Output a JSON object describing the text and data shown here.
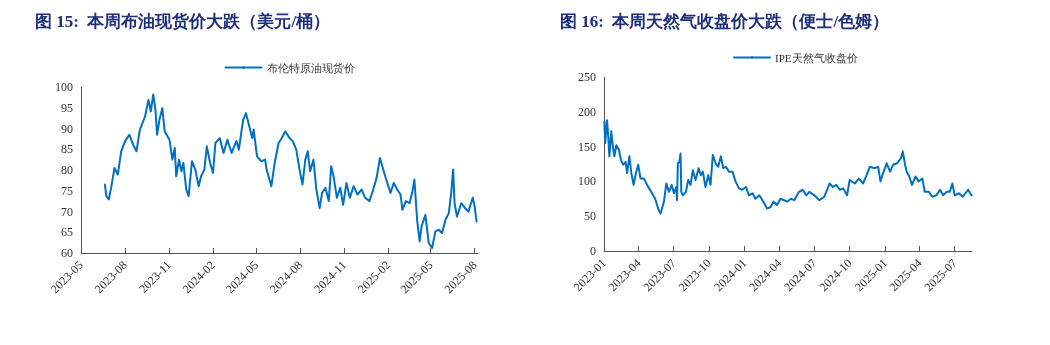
{
  "chart_data": [
    {
      "type": "line",
      "title": "图 15:  本周布油现货价大跌（美元/桶）",
      "legend": "top",
      "grid": false,
      "marker": "none",
      "line_style": "solid",
      "xlim": [
        "2023-05-01",
        "2025-08-08"
      ],
      "xticks": [
        "2023-05",
        "2023-08",
        "2023-11",
        "2024-02",
        "2024-05",
        "2024-08",
        "2024-11",
        "2025-02",
        "2025-05",
        "2025-08"
      ],
      "ylim": [
        60,
        100
      ],
      "yticks": [
        60,
        65,
        70,
        75,
        80,
        85,
        90,
        95,
        100
      ],
      "series": [
        {
          "name": "布伦特原油现货价",
          "color": "#0070c0",
          "x": [
            "2023-06-20",
            "2023-06-23",
            "2023-06-28",
            "2023-07-03",
            "2023-07-10",
            "2023-07-17",
            "2023-07-24",
            "2023-08-01",
            "2023-08-10",
            "2023-08-18",
            "2023-08-25",
            "2023-09-01",
            "2023-09-12",
            "2023-09-19",
            "2023-09-24",
            "2023-09-29",
            "2023-10-04",
            "2023-10-07",
            "2023-10-12",
            "2023-10-18",
            "2023-10-23",
            "2023-11-02",
            "2023-11-08",
            "2023-11-13",
            "2023-11-16",
            "2023-11-22",
            "2023-11-27",
            "2023-12-01",
            "2023-12-07",
            "2023-12-12",
            "2023-12-19",
            "2023-12-26",
            "2024-01-02",
            "2024-01-07",
            "2024-01-14",
            "2024-01-19",
            "2024-01-26",
            "2024-02-01",
            "2024-02-06",
            "2024-02-15",
            "2024-02-23",
            "2024-03-02",
            "2024-03-11",
            "2024-03-21",
            "2024-03-26",
            "2024-04-04",
            "2024-04-10",
            "2024-04-16",
            "2024-04-23",
            "2024-04-26",
            "2024-05-03",
            "2024-05-12",
            "2024-05-20",
            "2024-05-23",
            "2024-06-02",
            "2024-06-09",
            "2024-06-17",
            "2024-06-24",
            "2024-07-01",
            "2024-07-10",
            "2024-07-17",
            "2024-07-24",
            "2024-07-31",
            "2024-08-06",
            "2024-08-12",
            "2024-08-17",
            "2024-08-22",
            "2024-08-29",
            "2024-09-04",
            "2024-09-11",
            "2024-09-16",
            "2024-09-23",
            "2024-09-30",
            "2024-10-05",
            "2024-10-10",
            "2024-10-17",
            "2024-10-24",
            "2024-10-30",
            "2024-11-06",
            "2024-11-13",
            "2024-11-21",
            "2024-11-29",
            "2024-12-08",
            "2024-12-15",
            "2024-12-24",
            "2025-01-01",
            "2025-01-08",
            "2025-01-15",
            "2025-01-26",
            "2025-02-06",
            "2025-02-13",
            "2025-02-20",
            "2025-02-27",
            "2025-03-03",
            "2025-03-10",
            "2025-03-18",
            "2025-03-24",
            "2025-03-28",
            "2025-04-03",
            "2025-04-08",
            "2025-04-12",
            "2025-04-20",
            "2025-04-27",
            "2025-05-04",
            "2025-05-11",
            "2025-05-18",
            "2025-05-25",
            "2025-06-01",
            "2025-06-08",
            "2025-06-13",
            "2025-06-17",
            "2025-06-20",
            "2025-06-25",
            "2025-07-04",
            "2025-07-12",
            "2025-07-19",
            "2025-07-28",
            "2025-08-01",
            "2025-08-05"
          ],
          "values": [
            76.5,
            73.7,
            72.9,
            75.7,
            80.5,
            78.9,
            84.5,
            86.9,
            88.5,
            86.1,
            84.5,
            89.7,
            92.9,
            96.9,
            94.1,
            98.2,
            94.1,
            88.5,
            92.1,
            94.9,
            89.3,
            87.3,
            82.5,
            85.3,
            78.5,
            82.5,
            79.7,
            81.7,
            75.3,
            73.7,
            82.1,
            80.1,
            76.1,
            78.5,
            80.1,
            85.7,
            81.7,
            79.3,
            86.5,
            87.7,
            84.1,
            87.3,
            84.1,
            87,
            84.9,
            92.1,
            93.7,
            90.9,
            87.7,
            89.7,
            83.3,
            82.1,
            82.5,
            80.1,
            76.1,
            81.7,
            86.5,
            87.7,
            89.3,
            87.7,
            86.9,
            84.9,
            80.1,
            76.5,
            82.5,
            84.5,
            79.7,
            82.5,
            75.3,
            70.8,
            74.5,
            75.7,
            72.5,
            80.9,
            78.5,
            73.3,
            75.7,
            71.6,
            76.9,
            73.3,
            76.1,
            74.1,
            75.3,
            73.3,
            72.5,
            75.3,
            78.1,
            82.9,
            78.5,
            74.5,
            76.9,
            75.3,
            74.1,
            70.4,
            72.5,
            72,
            74.9,
            77.7,
            67.6,
            62.8,
            66.4,
            69.2,
            62.4,
            61.2,
            65.2,
            65.6,
            64.8,
            68,
            69.6,
            74.5,
            80.1,
            72,
            68.8,
            72,
            70.8,
            70,
            73.3,
            71.2,
            67.6
          ]
        }
      ]
    },
    {
      "type": "line",
      "title": "图 16:  本周天然气收盘价大跌（便士/色姆）",
      "legend": "top",
      "grid": false,
      "marker": "none",
      "line_style": "solid",
      "xlim": [
        "2023-01-01",
        "2025-08-15"
      ],
      "xticks": [
        "2023-01",
        "2023-04",
        "2023-07",
        "2023-10",
        "2024-01",
        "2024-04",
        "2024-07",
        "2024-10",
        "2025-01",
        "2025-04",
        "2025-07"
      ],
      "ylim": [
        0,
        250
      ],
      "yticks": [
        0,
        50,
        100,
        150,
        200,
        250
      ],
      "series": [
        {
          "name": "IPE天然气收盘价",
          "color": "#0070c0",
          "x": [
            "2023-01-02",
            "2023-01-04",
            "2023-01-07",
            "2023-01-09",
            "2023-01-12",
            "2023-01-15",
            "2023-01-20",
            "2023-01-24",
            "2023-01-28",
            "2023-02-02",
            "2023-02-09",
            "2023-02-14",
            "2023-02-20",
            "2023-02-26",
            "2023-03-02",
            "2023-03-08",
            "2023-03-13",
            "2023-03-19",
            "2023-03-25",
            "2023-03-31",
            "2023-04-06",
            "2023-04-15",
            "2023-04-23",
            "2023-05-06",
            "2023-05-14",
            "2023-05-23",
            "2023-05-28",
            "2023-06-06",
            "2023-06-12",
            "2023-06-19",
            "2023-06-26",
            "2023-07-02",
            "2023-07-08",
            "2023-07-10",
            "2023-07-12",
            "2023-07-16",
            "2023-07-19",
            "2023-07-21",
            "2023-07-25",
            "2023-08-02",
            "2023-08-08",
            "2023-08-14",
            "2023-08-20",
            "2023-08-27",
            "2023-09-04",
            "2023-09-10",
            "2023-09-15",
            "2023-09-22",
            "2023-09-29",
            "2023-10-05",
            "2023-10-11",
            "2023-10-18",
            "2023-10-25",
            "2023-11-01",
            "2023-11-07",
            "2023-11-14",
            "2023-11-22",
            "2023-12-01",
            "2023-12-09",
            "2023-12-18",
            "2023-12-26",
            "2024-01-05",
            "2024-01-13",
            "2024-01-22",
            "2024-01-30",
            "2024-02-09",
            "2024-02-19",
            "2024-02-29",
            "2024-03-09",
            "2024-03-17",
            "2024-03-26",
            "2024-04-04",
            "2024-04-22",
            "2024-05-01",
            "2024-05-10",
            "2024-05-22",
            "2024-06-01",
            "2024-06-10",
            "2024-06-18",
            "2024-07-01",
            "2024-07-14",
            "2024-07-27",
            "2024-08-10",
            "2024-08-18",
            "2024-08-27",
            "2024-09-05",
            "2024-09-14",
            "2024-09-24",
            "2024-10-01",
            "2024-10-14",
            "2024-10-25",
            "2024-11-05",
            "2024-11-14",
            "2024-11-22",
            "2024-12-05",
            "2024-12-14",
            "2024-12-20",
            "2024-12-27",
            "2025-01-05",
            "2025-01-14",
            "2025-01-22",
            "2025-02-01",
            "2025-02-11",
            "2025-02-16",
            "2025-02-22",
            "2025-02-26",
            "2025-03-05",
            "2025-03-12",
            "2025-03-21",
            "2025-03-29",
            "2025-04-08",
            "2025-04-14",
            "2025-04-25",
            "2025-05-04",
            "2025-05-14",
            "2025-05-24",
            "2025-06-01",
            "2025-06-10",
            "2025-06-18",
            "2025-06-25",
            "2025-07-01",
            "2025-07-12",
            "2025-07-22",
            "2025-08-05",
            "2025-08-10",
            "2025-08-14"
          ],
          "values": [
            186,
            155,
            176,
            188,
            164,
            136,
            172,
            150,
            136,
            152,
            145,
            131,
            124,
            128,
            112,
            136,
            112,
            95,
            112,
            124,
            104,
            104,
            95,
            83,
            75,
            59,
            54,
            71,
            97,
            85,
            95,
            83,
            92,
            73,
            126,
            128,
            140,
            85,
            80,
            85,
            102,
            95,
            116,
            102,
            119,
            109,
            114,
            92,
            109,
            95,
            138,
            126,
            121,
            136,
            119,
            121,
            114,
            114,
            100,
            90,
            88,
            92,
            80,
            83,
            75,
            80,
            71,
            61,
            63,
            71,
            66,
            75,
            71,
            75,
            73,
            85,
            88,
            80,
            85,
            80,
            73,
            78,
            97,
            92,
            95,
            88,
            90,
            80,
            102,
            97,
            104,
            97,
            109,
            121,
            119,
            121,
            100,
            112,
            126,
            114,
            124,
            126,
            133,
            143,
            124,
            114,
            107,
            95,
            107,
            100,
            104,
            85,
            85,
            78,
            80,
            88,
            80,
            85,
            85,
            97,
            80,
            83,
            78,
            88,
            83,
            80
          ]
        }
      ]
    }
  ]
}
